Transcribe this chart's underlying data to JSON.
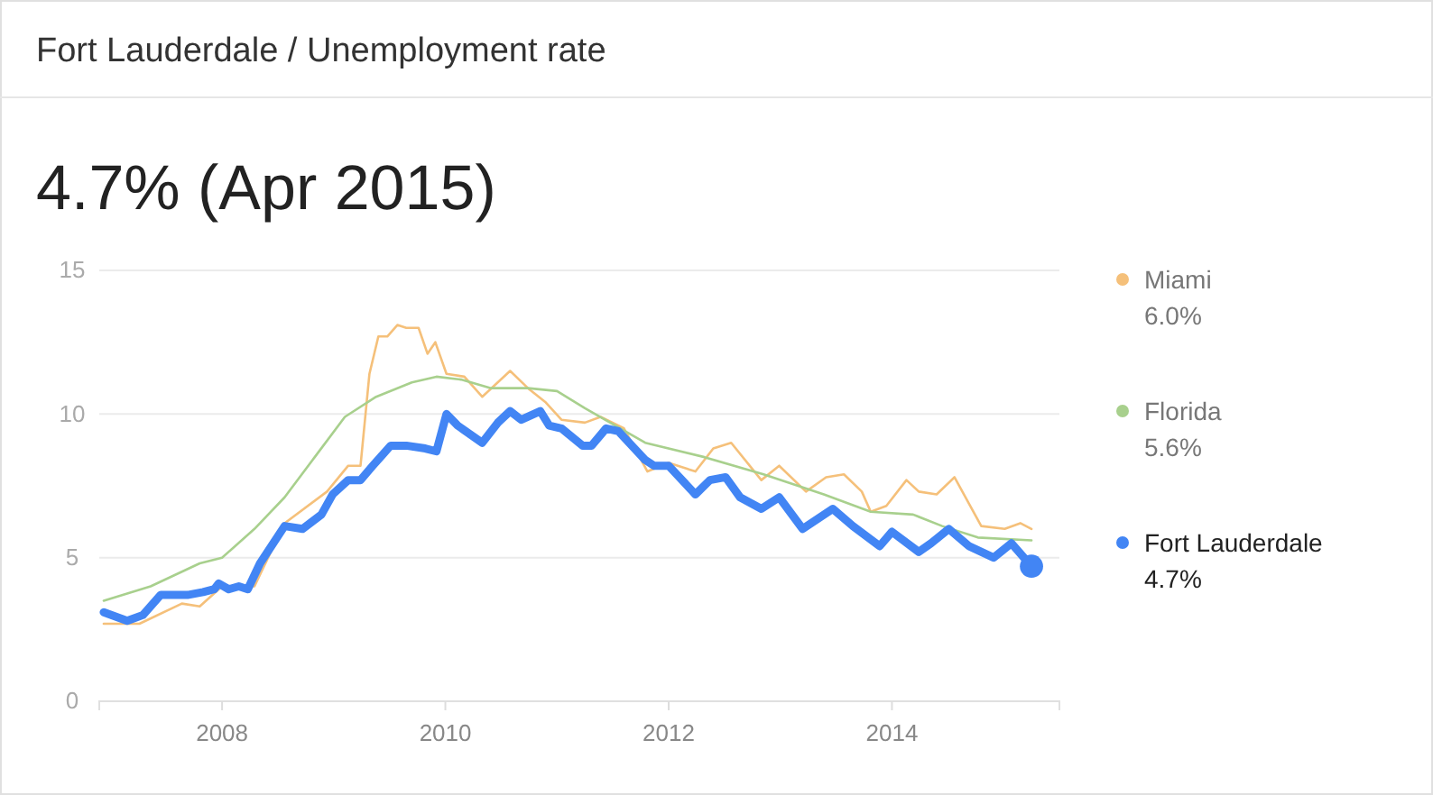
{
  "chart_data": {
    "type": "line",
    "title": "Fort Lauderdale / Unemployment rate",
    "subtitle": "4.7% (Apr 2015)",
    "xlim": [
      2006.9,
      2015.5
    ],
    "xticks": [
      2008,
      2010,
      2012,
      2014
    ],
    "ylim": [
      0,
      15
    ],
    "yticks": [
      0,
      5,
      10,
      15
    ],
    "grid": "y",
    "legend": "right",
    "annotations": [
      "6.0%",
      "5.6%",
      "4.7%"
    ],
    "marker": "none",
    "line_style": "solid",
    "series": [
      {
        "name": "Miami",
        "color": "#f5c07a",
        "x": [
          2006.94,
          2007.26,
          2007.64,
          2007.8,
          2008.0,
          2008.29,
          2008.56,
          2008.94,
          2009.13,
          2009.24,
          2009.32,
          2009.4,
          2009.48,
          2009.57,
          2009.65,
          2009.76,
          2009.84,
          2009.91,
          2010.01,
          2010.17,
          2010.33,
          2010.58,
          2010.74,
          2010.9,
          2011.04,
          2011.25,
          2011.39,
          2011.6,
          2011.81,
          2012.0,
          2012.24,
          2012.4,
          2012.56,
          2012.83,
          2012.99,
          2013.23,
          2013.41,
          2013.57,
          2013.73,
          2013.81,
          2013.95,
          2014.13,
          2014.24,
          2014.4,
          2014.56,
          2014.8,
          2015.01,
          2015.15,
          2015.25
        ],
        "values": [
          2.7,
          2.7,
          3.4,
          3.3,
          4.0,
          4.0,
          6.2,
          7.3,
          8.2,
          8.2,
          11.4,
          12.7,
          12.7,
          13.1,
          13.0,
          13.0,
          12.1,
          12.5,
          11.4,
          11.3,
          10.6,
          11.5,
          10.9,
          10.4,
          9.8,
          9.7,
          9.9,
          9.5,
          8.0,
          8.3,
          8.0,
          8.8,
          9.0,
          7.7,
          8.2,
          7.3,
          7.8,
          7.9,
          7.3,
          6.6,
          6.8,
          7.7,
          7.3,
          7.2,
          7.8,
          6.1,
          6.0,
          6.2,
          6.0
        ]
      },
      {
        "name": "Florida",
        "color": "#a8d08d",
        "x": [
          2006.94,
          2007.36,
          2007.8,
          2008.0,
          2008.29,
          2008.56,
          2008.83,
          2009.1,
          2009.38,
          2009.7,
          2009.92,
          2010.14,
          2010.41,
          2010.74,
          2011.0,
          2011.25,
          2011.79,
          2012.32,
          2012.85,
          2013.39,
          2013.81,
          2014.19,
          2014.45,
          2014.77,
          2015.25
        ],
        "values": [
          3.5,
          4.0,
          4.8,
          5.0,
          6.0,
          7.1,
          8.5,
          9.9,
          10.6,
          11.1,
          11.3,
          11.2,
          10.9,
          10.9,
          10.8,
          10.2,
          9.0,
          8.5,
          7.9,
          7.2,
          6.6,
          6.5,
          6.1,
          5.7,
          5.6
        ]
      },
      {
        "name": "Fort Lauderdale",
        "color": "#4285f4",
        "x": [
          2006.94,
          2007.15,
          2007.29,
          2007.45,
          2007.69,
          2007.83,
          2007.93,
          2007.97,
          2008.06,
          2008.15,
          2008.23,
          2008.34,
          2008.56,
          2008.72,
          2008.89,
          2008.99,
          2009.13,
          2009.24,
          2009.35,
          2009.51,
          2009.65,
          2009.82,
          2009.92,
          2010.01,
          2010.11,
          2010.33,
          2010.47,
          2010.58,
          2010.68,
          2010.85,
          2010.93,
          2011.04,
          2011.23,
          2011.31,
          2011.44,
          2011.55,
          2011.79,
          2011.87,
          2012.0,
          2012.24,
          2012.37,
          2012.51,
          2012.64,
          2012.83,
          2012.99,
          2013.2,
          2013.47,
          2013.65,
          2013.89,
          2014.0,
          2014.24,
          2014.35,
          2014.51,
          2014.69,
          2014.91,
          2015.07,
          2015.25
        ],
        "values": [
          3.1,
          2.8,
          3.0,
          3.7,
          3.7,
          3.8,
          3.9,
          4.1,
          3.9,
          4.0,
          3.9,
          4.8,
          6.1,
          6.0,
          6.5,
          7.2,
          7.7,
          7.7,
          8.2,
          8.9,
          8.9,
          8.8,
          8.7,
          10.0,
          9.6,
          9.0,
          9.7,
          10.1,
          9.8,
          10.1,
          9.6,
          9.5,
          8.9,
          8.9,
          9.5,
          9.4,
          8.4,
          8.2,
          8.2,
          7.2,
          7.7,
          7.8,
          7.1,
          6.7,
          7.1,
          6.0,
          6.7,
          6.1,
          5.4,
          5.9,
          5.2,
          5.5,
          6.0,
          5.4,
          5.0,
          5.5,
          4.7
        ]
      },
      {
        "type": "scatter",
        "color": "#4285f4",
        "x": [
          2015.25
        ],
        "values": [
          4.7
        ],
        "marker": "circle"
      }
    ]
  }
}
